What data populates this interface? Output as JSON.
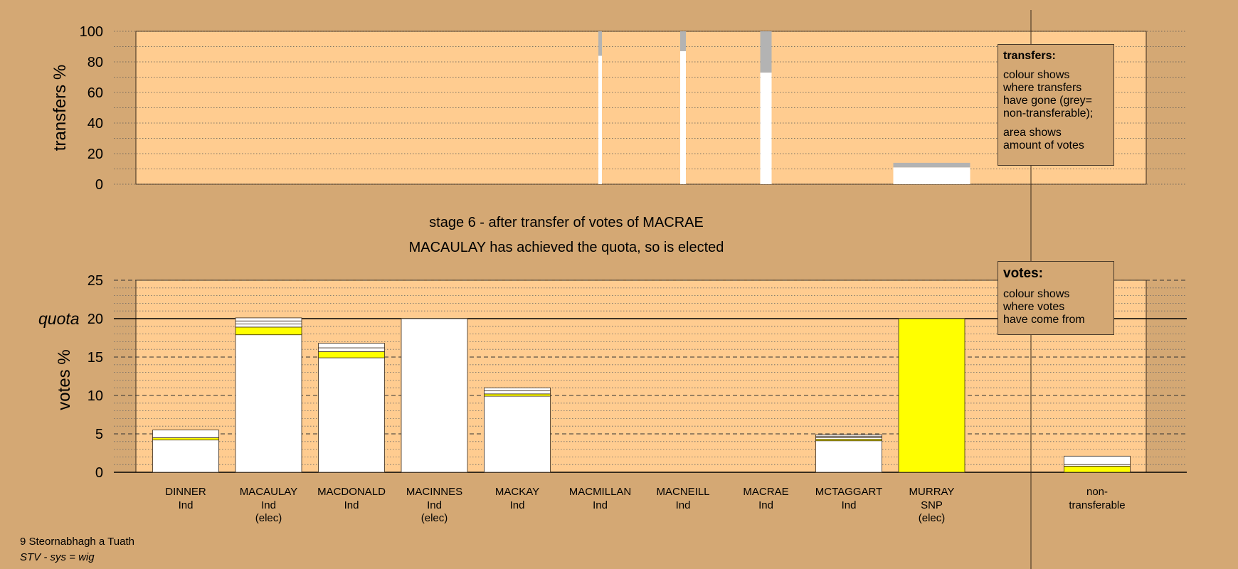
{
  "chart_data": {
    "type": "bar",
    "footer": {
      "constituency": "9 Steornabhagh a Tuath",
      "system": "STV - sys = wig"
    },
    "stage_title": "stage 6 - after transfer of votes of MACRAE",
    "stage_subtitle": "MACAULAY has achieved the quota, so is elected",
    "transfers_panel": {
      "ylabel": "transfers %",
      "ylim": [
        0,
        100
      ],
      "yticks": [
        "0",
        "20",
        "40",
        "60",
        "80",
        "100"
      ],
      "bars": [
        {
          "candidate": "MACMILLAN",
          "transferable": 84,
          "non_transferable": 16
        },
        {
          "candidate": "MACNEILL",
          "transferable": 87,
          "non_transferable": 13
        },
        {
          "candidate": "MACRAE",
          "transferable": 73,
          "non_transferable": 27
        },
        {
          "candidate": "MURRAY",
          "transferable": 11,
          "non_transferable": 3
        }
      ]
    },
    "votes_panel": {
      "ylabel": "votes %",
      "ylim": [
        0,
        25
      ],
      "yticks": [
        "0",
        "5",
        "10",
        "15",
        "20",
        "25"
      ],
      "quota_label": "quota",
      "quota": 20,
      "categories": [
        {
          "name": "DINNER",
          "party": "Ind",
          "status": ""
        },
        {
          "name": "MACAULAY",
          "party": "Ind",
          "status": "(elec)"
        },
        {
          "name": "MACDONALD",
          "party": "Ind",
          "status": ""
        },
        {
          "name": "MACINNES",
          "party": "Ind",
          "status": "(elec)"
        },
        {
          "name": "MACKAY",
          "party": "Ind",
          "status": ""
        },
        {
          "name": "MACMILLAN",
          "party": "Ind",
          "status": ""
        },
        {
          "name": "MACNEILL",
          "party": "Ind",
          "status": ""
        },
        {
          "name": "MACRAE",
          "party": "Ind",
          "status": ""
        },
        {
          "name": "MCTAGGART",
          "party": "Ind",
          "status": ""
        },
        {
          "name": "MURRAY",
          "party": "SNP",
          "status": "(elec)"
        }
      ],
      "series_segments": [
        [
          {
            "v": 4.2,
            "c": "#ffffff"
          },
          {
            "v": 0.3,
            "c": "#ffff00"
          },
          {
            "v": 1.0,
            "c": "#ffffff"
          }
        ],
        [
          {
            "v": 17.9,
            "c": "#ffffff"
          },
          {
            "v": 1.0,
            "c": "#ffff00"
          },
          {
            "v": 0.4,
            "c": "#ffffff"
          },
          {
            "v": 0.4,
            "c": "#ffffff"
          },
          {
            "v": 0.4,
            "c": "#ffffff"
          }
        ],
        [
          {
            "v": 14.9,
            "c": "#ffffff"
          },
          {
            "v": 0.8,
            "c": "#ffff00"
          },
          {
            "v": 0.5,
            "c": "#ffffff"
          },
          {
            "v": 0.6,
            "c": "#ffffff"
          }
        ],
        [
          {
            "v": 20.0,
            "c": "#ffffff"
          }
        ],
        [
          {
            "v": 9.9,
            "c": "#ffffff"
          },
          {
            "v": 0.3,
            "c": "#ffff00"
          },
          {
            "v": 0.4,
            "c": "#ffffff"
          },
          {
            "v": 0.4,
            "c": "#ffffff"
          }
        ],
        [],
        [],
        [],
        [
          {
            "v": 4.1,
            "c": "#ffffff"
          },
          {
            "v": 0.2,
            "c": "#ffff00"
          },
          {
            "v": 0.2,
            "c": "#ffffff"
          },
          {
            "v": 0.2,
            "c": "#ffffff"
          },
          {
            "v": 0.2,
            "c": "#ffffff"
          }
        ],
        [
          {
            "v": 20.0,
            "c": "#ffff00"
          }
        ]
      ],
      "non_transferable": {
        "label_line1": "non-",
        "label_line2": "transferable",
        "segments": [
          {
            "v": 0.8,
            "c": "#ffff00"
          },
          {
            "v": 0.2,
            "c": "#ffffff"
          },
          {
            "v": 1.1,
            "c": "#ffffff"
          }
        ]
      }
    },
    "legend_transfers": {
      "title": "transfers:",
      "text1": "colour shows\nwhere transfers\nhave gone (grey=\nnon-transferable);",
      "text2": "area shows\namount of votes"
    },
    "legend_votes": {
      "title": "votes:",
      "text1": "colour shows\nwhere votes\nhave come from"
    },
    "colors": {
      "background": "#d4a874",
      "plot_area": "#ffcc90",
      "snp": "#ffff00",
      "independent": "#ffffff",
      "non_transferable": "#b3b3b3"
    }
  }
}
